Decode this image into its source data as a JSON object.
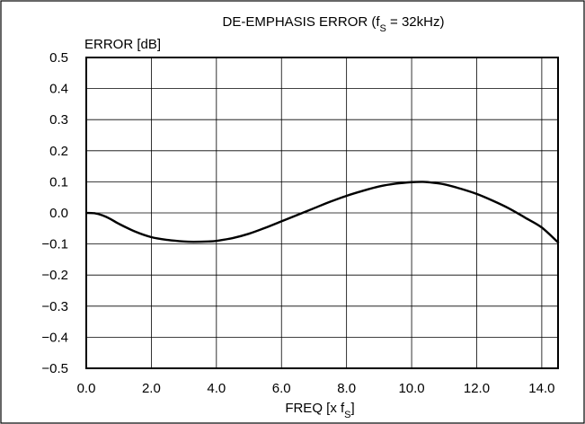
{
  "chart_data": {
    "type": "line",
    "title": {
      "prefix": "DE-EMPHASIS ERROR (f",
      "subscript": "S",
      "suffix": " = 32kHz)"
    },
    "ylabel": "ERROR [dB]",
    "xlabel": {
      "prefix": "FREQ [x f",
      "subscript": "S",
      "suffix": "]"
    },
    "x_ticks": [
      "0.0",
      "2.0",
      "4.0",
      "6.0",
      "8.0",
      "10.0",
      "12.0",
      "14.0"
    ],
    "y_ticks": [
      "0.5",
      "0.4",
      "0.3",
      "0.2",
      "0.1",
      "0.0",
      "−0.1",
      "−0.2",
      "−0.3",
      "−0.4",
      "−0.5"
    ],
    "xlim": [
      0,
      14.5
    ],
    "ylim": [
      -0.5,
      0.5
    ],
    "grid": true,
    "series": [
      {
        "x": [
          0.0,
          0.25,
          0.5,
          0.75,
          1.0,
          1.5,
          2.0,
          2.5,
          3.0,
          3.3,
          3.75,
          4.0,
          4.5,
          5.0,
          5.5,
          6.0,
          6.5,
          7.0,
          7.5,
          8.0,
          8.5,
          9.0,
          9.5,
          10.0,
          10.3,
          10.5,
          11.0,
          11.5,
          12.0,
          12.5,
          13.0,
          13.5,
          14.0,
          14.5
        ],
        "y": [
          0.0,
          -0.001,
          -0.008,
          -0.02,
          -0.035,
          -0.06,
          -0.078,
          -0.087,
          -0.092,
          -0.093,
          -0.092,
          -0.09,
          -0.081,
          -0.067,
          -0.048,
          -0.027,
          -0.006,
          0.015,
          0.036,
          0.055,
          0.071,
          0.085,
          0.094,
          0.099,
          0.1,
          0.099,
          0.092,
          0.078,
          0.061,
          0.039,
          0.014,
          -0.016,
          -0.047,
          -0.095
        ],
        "color": "#000000"
      }
    ]
  }
}
